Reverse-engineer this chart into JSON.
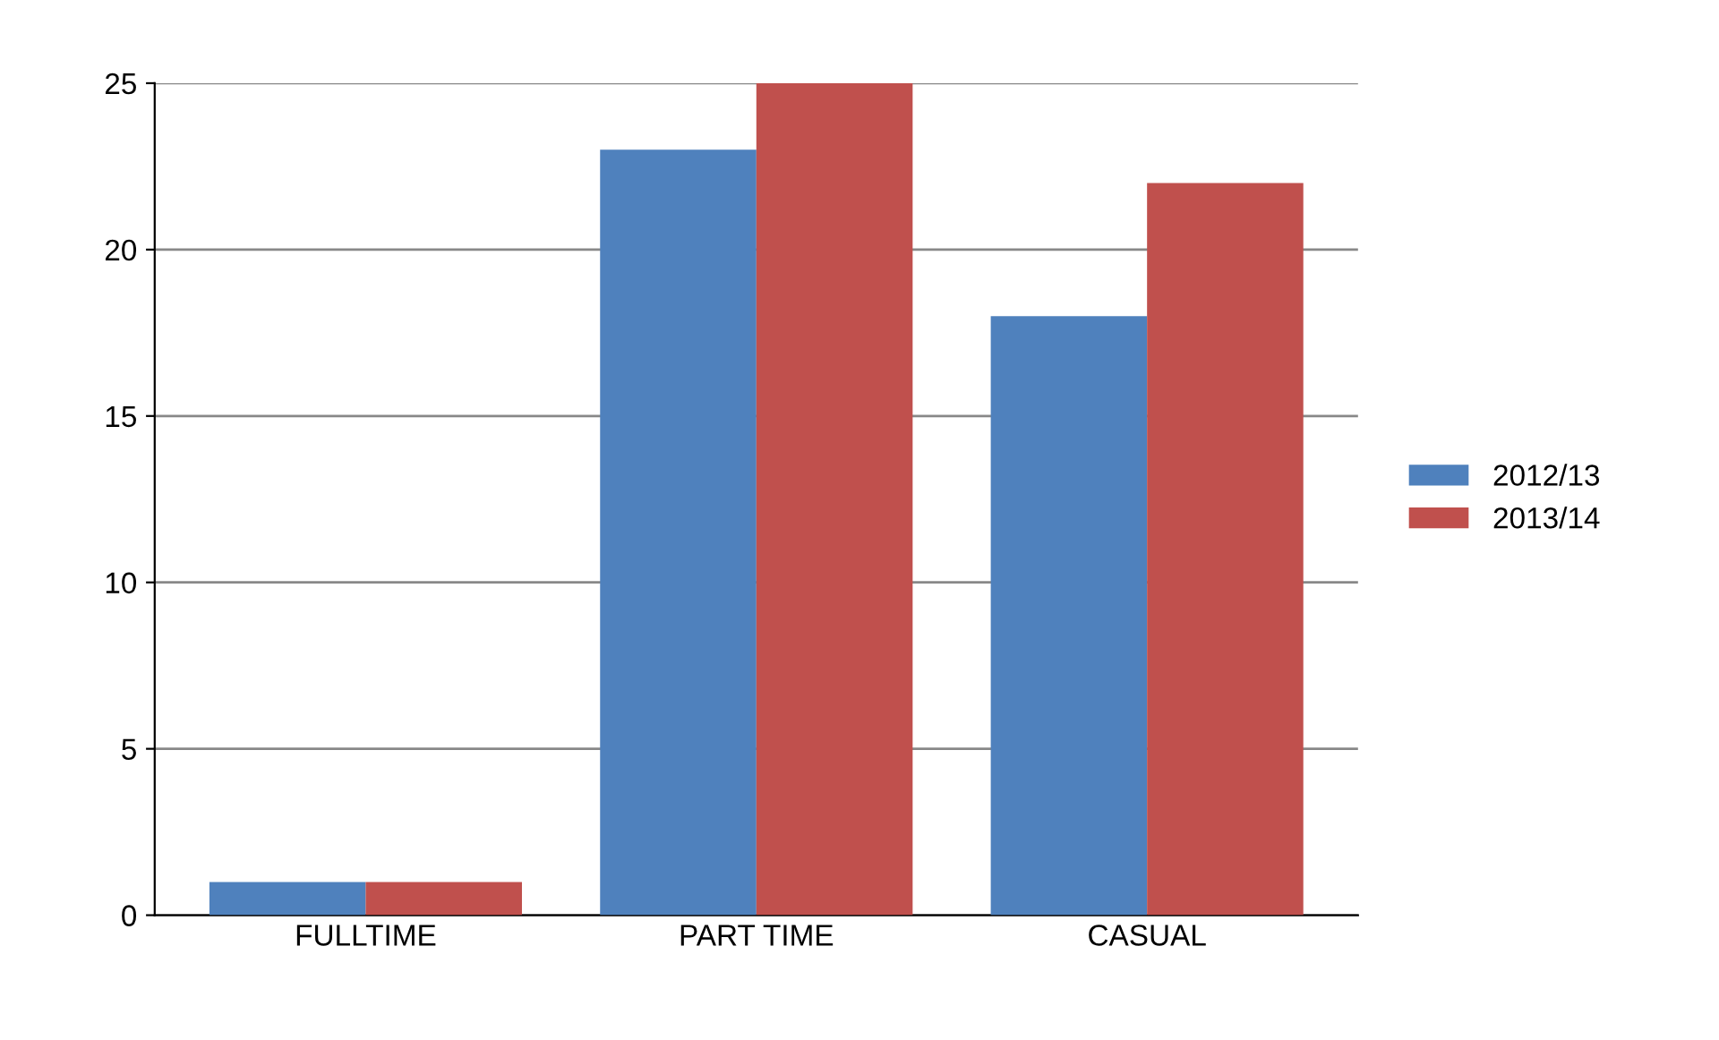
{
  "chart_data": {
    "type": "bar",
    "categories": [
      "FULLTIME",
      "PART TIME",
      "CASUAL"
    ],
    "series": [
      {
        "name": "2012/13",
        "color": "#4f81bd",
        "values": [
          1,
          23,
          18
        ]
      },
      {
        "name": "2013/14",
        "color": "#c0504d",
        "values": [
          1,
          25,
          22
        ]
      }
    ],
    "ylim": [
      0,
      25
    ],
    "yticks": [
      0,
      5,
      10,
      15,
      20,
      25
    ],
    "grid": "y",
    "legend": "right"
  }
}
